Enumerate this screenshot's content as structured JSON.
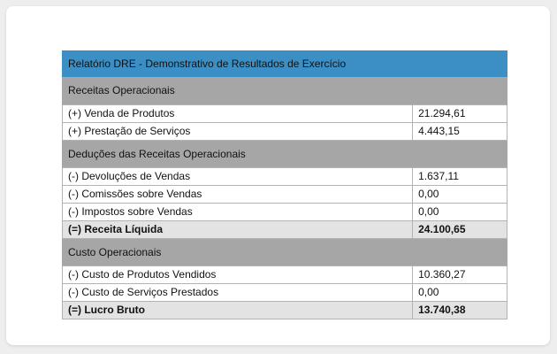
{
  "report": {
    "title": "Relatório DRE - Demonstrativo de Resultados de Exercício",
    "colors": {
      "title_bg": "#3b8fc4",
      "section_bg": "#a6a6a6",
      "total_bg": "#e3e3e3"
    },
    "sections": [
      {
        "title": "Receitas Operacionais",
        "rows": [
          {
            "label": "(+) Venda de Produtos",
            "value": "21.294,61"
          },
          {
            "label": "(+) Prestação de Serviços",
            "value": "4.443,15"
          }
        ]
      },
      {
        "title": "Deduções das Receitas Operacionais",
        "rows": [
          {
            "label": "(-) Devoluções de Vendas",
            "value": "1.637,11"
          },
          {
            "label": "(-) Comissões sobre Vendas",
            "value": "0,00"
          },
          {
            "label": "(-) Impostos sobre Vendas",
            "value": "0,00"
          }
        ],
        "total": {
          "label": "(=) Receita Líquida",
          "value": "24.100,65"
        }
      },
      {
        "title": "Custo Operacionais",
        "rows": [
          {
            "label": "(-) Custo de Produtos Vendidos",
            "value": "10.360,27"
          },
          {
            "label": "(-) Custo de Serviços Prestados",
            "value": "0,00"
          }
        ],
        "total": {
          "label": "(=) Lucro Bruto",
          "value": "13.740,38"
        }
      }
    ]
  }
}
